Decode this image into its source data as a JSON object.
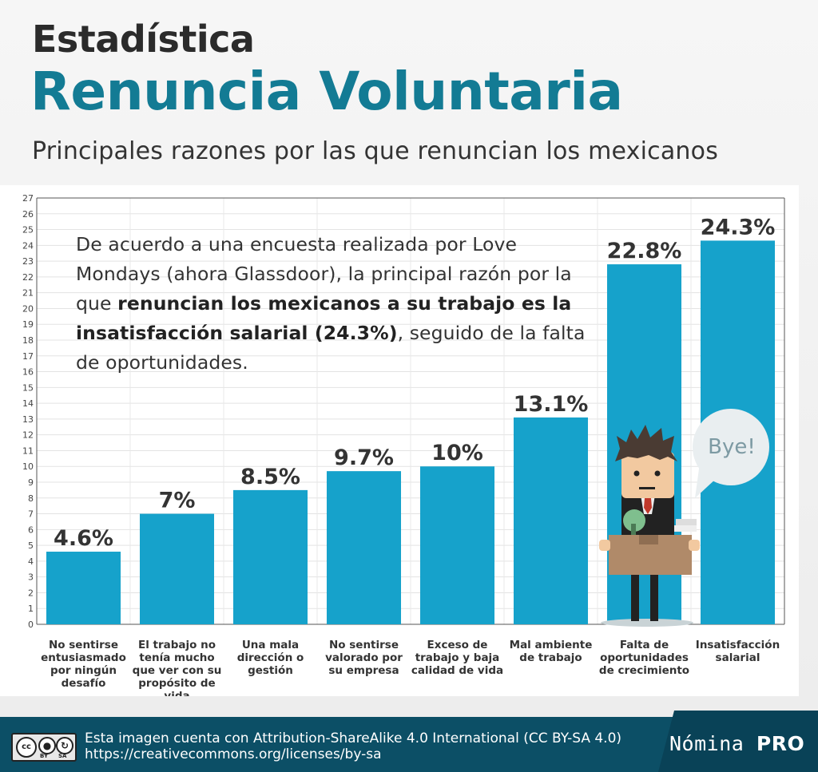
{
  "header": {
    "title_line1": "Estadística",
    "title_line2": "Renuncia Voluntaria",
    "subtitle": "Principales razones por las que renuncian los mexicanos"
  },
  "note": {
    "part1": "De acuerdo a una encuesta realizada por Love Mondays (ahora Glassdoor), la principal razón por la que ",
    "bold": "renuncian los mexicanos a su trabajo es la insatisfacción salarial (24.3%)",
    "part2": ", seguido de la falta de oportunidades."
  },
  "speech_bubble": "Bye!",
  "chart_data": {
    "type": "bar",
    "categories": [
      "No sentirse entusiasmado por ningún desafío",
      "El trabajo no tenía mucho que ver con su propósito de vida",
      "Una mala dirección o gestión",
      "No sentirse valorado por su empresa",
      "Exceso de trabajo y baja calidad de vida",
      "Mal ambiente de trabajo",
      "Falta de oportunidades de crecimiento",
      "Insatisfacción salarial"
    ],
    "category_lines": [
      [
        "No sentirse",
        "entusiasmado",
        "por ningún",
        "desafío"
      ],
      [
        "El trabajo no",
        "tenía mucho",
        "que ver con su",
        "propósito de",
        "vida"
      ],
      [
        "Una mala",
        "dirección o",
        "gestión"
      ],
      [
        "No sentirse",
        "valorado por",
        "su empresa"
      ],
      [
        "Exceso de",
        "trabajo y baja",
        "calidad de vida"
      ],
      [
        "Mal ambiente",
        "de trabajo"
      ],
      [
        "Falta de",
        "oportunidades",
        "de crecimiento"
      ],
      [
        "Insatisfacción",
        "salarial"
      ]
    ],
    "values": [
      4.6,
      7,
      8.5,
      9.7,
      10,
      13.1,
      22.8,
      24.3
    ],
    "value_labels": [
      "4.6%",
      "7%",
      "8.5%",
      "9.7%",
      "10%",
      "13.1%",
      "22.8%",
      "24.3%"
    ],
    "ylim": [
      0,
      27
    ],
    "yticks": [
      "0",
      "1",
      "2",
      "3",
      "4",
      "5",
      "6",
      "7",
      "8",
      "9",
      "10",
      "11",
      "12",
      "13",
      "14",
      "15",
      "16",
      "17",
      "18",
      "19",
      "20",
      "21",
      "22",
      "23",
      "24",
      "25",
      "26",
      "27"
    ],
    "grid": true,
    "bar_color": "#16a2cb"
  },
  "footer": {
    "license_line1": "Esta imagen cuenta con Attribution-ShareAlike 4.0 International (CC BY-SA 4.0)",
    "license_line2": "https://creativecommons.org/licenses/by-sa",
    "cc_label": "cc",
    "by_label": "BY",
    "sa_label": "SA",
    "brand_regular": "Nómina",
    "brand_bold": "PRO"
  }
}
